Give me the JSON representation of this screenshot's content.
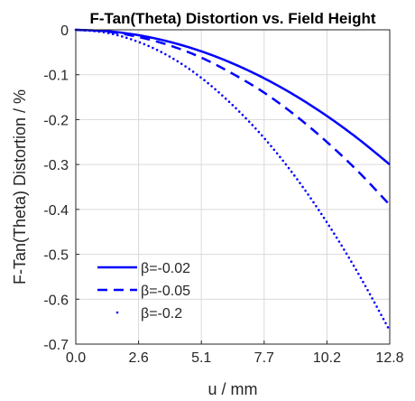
{
  "chart_data": {
    "type": "line",
    "title": "F-Tan(Theta) Distortion vs. Field Height",
    "xlabel": "u / mm",
    "ylabel": "F-Tan(Theta) Distortion / %",
    "xlim": [
      0,
      12.8
    ],
    "ylim": [
      -0.7,
      0
    ],
    "xticks": [
      "0.0",
      "2.6",
      "5.1",
      "7.7",
      "10.2",
      "12.8"
    ],
    "xtick_values": [
      0,
      2.56,
      5.12,
      7.68,
      10.24,
      12.8
    ],
    "yticks": [
      "0",
      "-0.1",
      "-0.2",
      "-0.3",
      "-0.4",
      "-0.5",
      "-0.6",
      "-0.7"
    ],
    "ytick_values": [
      0,
      -0.1,
      -0.2,
      -0.3,
      -0.4,
      -0.5,
      -0.6,
      -0.7
    ],
    "grid": true,
    "legend_position": "bottom-left",
    "series": [
      {
        "name": "β=-0.02",
        "style": "solid",
        "color": "#0000ff",
        "x": [
          0,
          1.28,
          2.56,
          3.84,
          5.12,
          6.4,
          7.68,
          8.96,
          10.24,
          11.52,
          12.8
        ],
        "y": [
          0,
          -0.003,
          -0.012,
          -0.027,
          -0.048,
          -0.075,
          -0.108,
          -0.147,
          -0.192,
          -0.243,
          -0.3
        ]
      },
      {
        "name": "β=-0.05",
        "style": "dashed",
        "color": "#0000ff",
        "x": [
          0,
          1.28,
          2.56,
          3.84,
          5.12,
          6.4,
          7.68,
          8.96,
          10.24,
          11.52,
          12.8
        ],
        "y": [
          0,
          -0.004,
          -0.016,
          -0.035,
          -0.062,
          -0.098,
          -0.14,
          -0.191,
          -0.25,
          -0.316,
          -0.39
        ]
      },
      {
        "name": "β=-0.2",
        "style": "dotted",
        "color": "#0000ff",
        "x": [
          0,
          1.28,
          2.56,
          3.84,
          5.12,
          6.4,
          7.68,
          8.96,
          10.24,
          11.52,
          12.8
        ],
        "y": [
          0,
          -0.0067,
          -0.027,
          -0.06,
          -0.107,
          -0.168,
          -0.241,
          -0.328,
          -0.429,
          -0.543,
          -0.67
        ]
      }
    ]
  }
}
